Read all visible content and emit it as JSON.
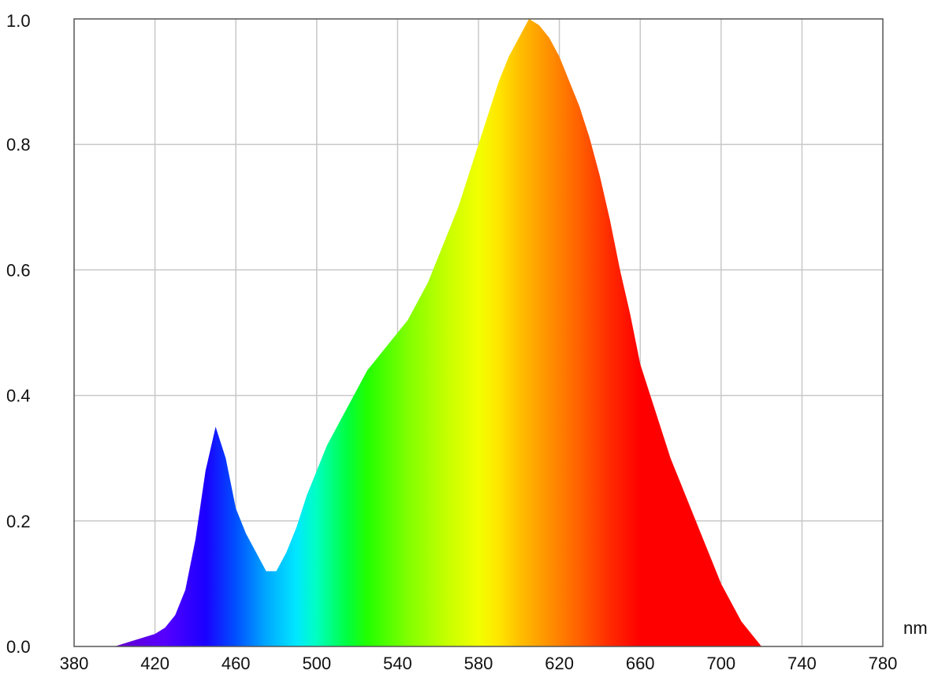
{
  "chart_data": {
    "type": "area",
    "title": "",
    "xlabel": "nm",
    "ylabel": "",
    "xlim": [
      380,
      780
    ],
    "ylim": [
      0,
      1.0
    ],
    "grid": true,
    "legend": "none",
    "fill": "wavelength spectrum colors",
    "x_ticks": [
      "380",
      "420",
      "460",
      "500",
      "540",
      "580",
      "620",
      "660",
      "700",
      "740",
      "780"
    ],
    "y_ticks": [
      "0.0",
      "0.2",
      "0.4",
      "0.6",
      "0.8",
      "1.0"
    ],
    "x_tick_values": [
      380,
      420,
      460,
      500,
      540,
      580,
      620,
      660,
      700,
      740,
      780
    ],
    "y_tick_values": [
      0.0,
      0.2,
      0.4,
      0.6,
      0.8,
      1.0
    ],
    "series": [
      {
        "x": [
          380,
          400,
          410,
          420,
          425,
          430,
          435,
          440,
          445,
          450,
          455,
          460,
          465,
          470,
          475,
          480,
          485,
          490,
          495,
          500,
          505,
          510,
          515,
          520,
          525,
          530,
          535,
          540,
          545,
          550,
          555,
          560,
          565,
          570,
          575,
          580,
          585,
          590,
          595,
          600,
          605,
          610,
          615,
          620,
          625,
          630,
          635,
          640,
          645,
          650,
          655,
          660,
          665,
          670,
          675,
          680,
          685,
          690,
          695,
          700,
          705,
          710,
          715,
          720
        ],
        "values": [
          0.0,
          0.0,
          0.01,
          0.02,
          0.03,
          0.05,
          0.09,
          0.17,
          0.28,
          0.35,
          0.3,
          0.22,
          0.18,
          0.15,
          0.12,
          0.12,
          0.15,
          0.19,
          0.24,
          0.28,
          0.32,
          0.35,
          0.38,
          0.41,
          0.44,
          0.46,
          0.48,
          0.5,
          0.52,
          0.55,
          0.58,
          0.62,
          0.66,
          0.7,
          0.75,
          0.8,
          0.85,
          0.9,
          0.94,
          0.97,
          1.0,
          0.99,
          0.97,
          0.94,
          0.9,
          0.86,
          0.81,
          0.75,
          0.68,
          0.6,
          0.53,
          0.45,
          0.4,
          0.35,
          0.3,
          0.26,
          0.22,
          0.18,
          0.14,
          0.1,
          0.07,
          0.04,
          0.02,
          0.0
        ]
      }
    ]
  }
}
